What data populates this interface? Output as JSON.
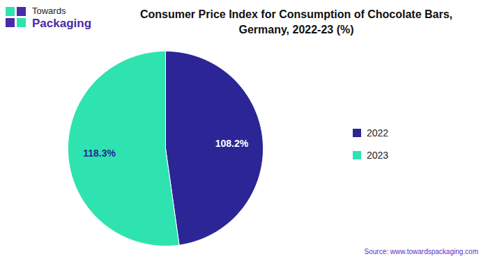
{
  "chart_data": {
    "type": "pie",
    "title": "Consumer Price Index for Consumption of Chocolate Bars, Germany, 2022-23 (%)",
    "categories": [
      "2022",
      "2023"
    ],
    "values": [
      108.2,
      118.3
    ],
    "value_labels": [
      "108.2%",
      "118.3%"
    ],
    "colors": [
      "#2b2596",
      "#2ee3b0"
    ],
    "data_labels": true,
    "legend": "right",
    "brand": [
      "Towards",
      "Packaging"
    ],
    "source": "Source: www.towardspackaging.com"
  }
}
